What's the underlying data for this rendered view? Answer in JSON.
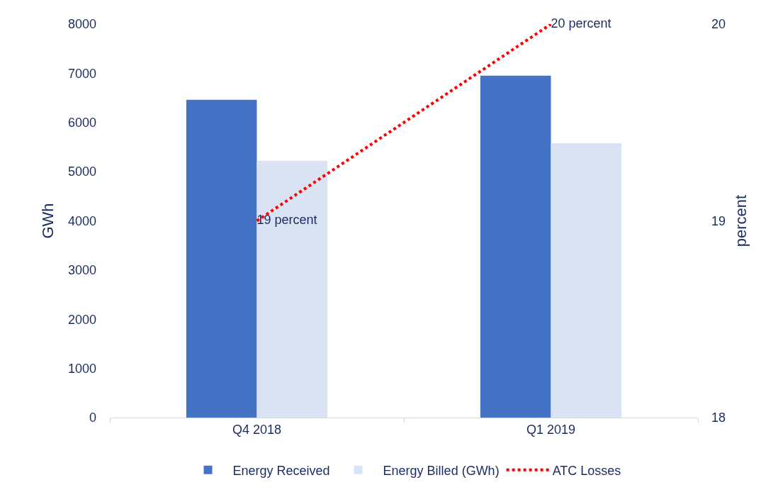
{
  "chart_data": {
    "type": "bar",
    "ylabel": "GWh",
    "y2label": "percent",
    "categories": [
      "Q4 2018",
      "Q1 2019"
    ],
    "series": [
      {
        "name": "Energy Received",
        "color": "#4472c4",
        "values": [
          6460,
          6950
        ]
      },
      {
        "name": "Energy Billed (GWh)",
        "color": "#dae3f3",
        "values": [
          5220,
          5580
        ]
      },
      {
        "name": "ATC Losses",
        "type": "line",
        "axis": "y2",
        "color": "#ff0000",
        "values": [
          19,
          20
        ],
        "value_labels": [
          "19 percent",
          "20 percent"
        ],
        "line_style": "dotted"
      }
    ],
    "ylim": [
      0,
      8000
    ],
    "yticks": [
      0,
      1000,
      2000,
      3000,
      4000,
      5000,
      6000,
      7000,
      8000
    ],
    "y2lim": [
      18,
      20
    ],
    "y2ticks": [
      18,
      19,
      20
    ],
    "legend": "bottom"
  }
}
